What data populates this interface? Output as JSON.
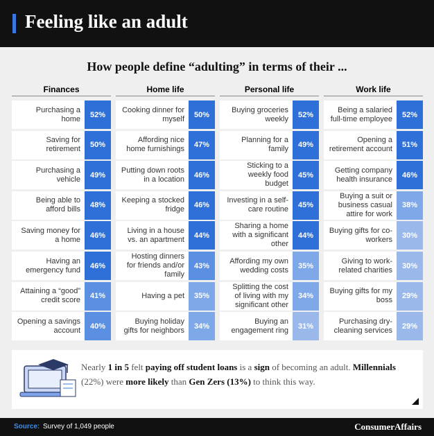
{
  "header": {
    "title": "Feeling like an adult"
  },
  "subtitle": "How people define “adulting” in terms of their ...",
  "columns": [
    {
      "title": "Finances",
      "items": [
        {
          "label": "Purchasing a home",
          "value": 52,
          "value_label": "52%"
        },
        {
          "label": "Saving for retirement",
          "value": 50,
          "value_label": "50%"
        },
        {
          "label": "Purchasing a vehicle",
          "value": 49,
          "value_label": "49%"
        },
        {
          "label": "Being able to afford bills",
          "value": 48,
          "value_label": "48%"
        },
        {
          "label": "Saving money for a home",
          "value": 46,
          "value_label": "46%"
        },
        {
          "label": "Having an emergency fund",
          "value": 46,
          "value_label": "46%"
        },
        {
          "label": "Attaining a “good” credit score",
          "value": 41,
          "value_label": "41%"
        },
        {
          "label": "Opening a savings account",
          "value": 40,
          "value_label": "40%"
        }
      ]
    },
    {
      "title": "Home life",
      "items": [
        {
          "label": "Cooking dinner for myself",
          "value": 50,
          "value_label": "50%"
        },
        {
          "label": "Affording nice home furnishings",
          "value": 47,
          "value_label": "47%"
        },
        {
          "label": "Putting down roots in a location",
          "value": 46,
          "value_label": "46%"
        },
        {
          "label": "Keeping a stocked fridge",
          "value": 46,
          "value_label": "46%"
        },
        {
          "label": "Living in a house vs. an apartment",
          "value": 44,
          "value_label": "44%"
        },
        {
          "label": "Hosting dinners for friends and/or family",
          "value": 43,
          "value_label": "43%"
        },
        {
          "label": "Having a pet",
          "value": 35,
          "value_label": "35%"
        },
        {
          "label": "Buying holiday gifts for neighbors",
          "value": 34,
          "value_label": "34%"
        }
      ]
    },
    {
      "title": "Personal life",
      "items": [
        {
          "label": "Buying groceries weekly",
          "value": 52,
          "value_label": "52%"
        },
        {
          "label": "Planning for a family",
          "value": 49,
          "value_label": "49%"
        },
        {
          "label": "Sticking to a weekly food budget",
          "value": 45,
          "value_label": "45%"
        },
        {
          "label": "Investing in a self-care routine",
          "value": 45,
          "value_label": "45%"
        },
        {
          "label": "Sharing a home with a significant other",
          "value": 44,
          "value_label": "44%"
        },
        {
          "label": "Affording my own wedding costs",
          "value": 35,
          "value_label": "35%"
        },
        {
          "label": "Splitting the cost of living with my significant other",
          "value": 34,
          "value_label": "34%"
        },
        {
          "label": "Buying an engagement ring",
          "value": 31,
          "value_label": "31%"
        }
      ]
    },
    {
      "title": "Work life",
      "items": [
        {
          "label": "Being a salaried full-time employee",
          "value": 52,
          "value_label": "52%"
        },
        {
          "label": "Opening a retirement account",
          "value": 51,
          "value_label": "51%"
        },
        {
          "label": "Getting company health insurance",
          "value": 46,
          "value_label": "46%"
        },
        {
          "label": "Buying a suit or business casual attire for work",
          "value": 38,
          "value_label": "38%"
        },
        {
          "label": "Buying gifts for co-workers",
          "value": 30,
          "value_label": "30%"
        },
        {
          "label": "Giving to work-related charities",
          "value": 30,
          "value_label": "30%"
        },
        {
          "label": "Buying gifts for my boss",
          "value": 29,
          "value_label": "29%"
        },
        {
          "label": "Purchasing dry-cleaning services",
          "value": 29,
          "value_label": "29%"
        }
      ]
    }
  ],
  "callout": [
    {
      "text": "Nearly ",
      "bold": false
    },
    {
      "text": "1 in 5",
      "bold": true
    },
    {
      "text": " felt ",
      "bold": false
    },
    {
      "text": "paying off student loans",
      "bold": true
    },
    {
      "text": " is a ",
      "bold": false
    },
    {
      "text": "sign",
      "bold": true
    },
    {
      "text": " of becoming an adult. ",
      "bold": false
    },
    {
      "text": "Millennials",
      "bold": true
    },
    {
      "text": " (22%) were ",
      "bold": false
    },
    {
      "text": "more likely",
      "bold": true
    },
    {
      "text": " than ",
      "bold": false
    },
    {
      "text": "Gen Zers (13%)",
      "bold": true
    },
    {
      "text": " to think this way.",
      "bold": false
    }
  ],
  "footer": {
    "source_label": "Source:",
    "source": "Survey of 1,049 people",
    "brand": "ConsumerAffairs"
  }
}
